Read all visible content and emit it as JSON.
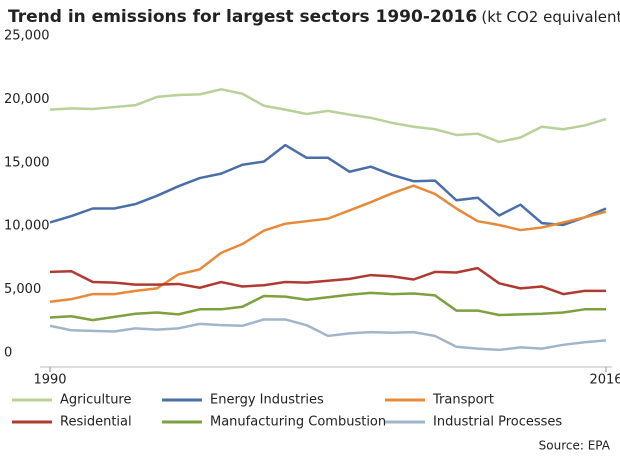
{
  "chart_data": {
    "type": "line",
    "title": "Trend in emissions for largest sectors 1990-2016",
    "subtitle": "(kt CO2 equivalent)",
    "source": "Source: EPA",
    "x": [
      1990,
      1991,
      1992,
      1993,
      1994,
      1995,
      1996,
      1997,
      1998,
      1999,
      2000,
      2001,
      2002,
      2003,
      2004,
      2005,
      2006,
      2007,
      2008,
      2009,
      2010,
      2011,
      2012,
      2013,
      2014,
      2015,
      2016
    ],
    "xlim": [
      1990,
      2016
    ],
    "xticks": [
      1990,
      2016
    ],
    "ylim": [
      0,
      25000
    ],
    "yticks": [
      {
        "value": 0,
        "label": "0"
      },
      {
        "value": 5000,
        "label": "5,000"
      },
      {
        "value": 10000,
        "label": "10,000"
      },
      {
        "value": 15000,
        "label": "15,000"
      },
      {
        "value": 20000,
        "label": "20,000"
      },
      {
        "value": 25000,
        "label": "25,000"
      }
    ],
    "grid": false,
    "legend": "bottom",
    "series": [
      {
        "name": "Agriculture",
        "color": "#b7d198",
        "values": [
          20300,
          20400,
          20350,
          20500,
          20650,
          21300,
          21450,
          21500,
          21900,
          21550,
          20600,
          20300,
          19950,
          20200,
          19900,
          19650,
          19250,
          18950,
          18750,
          18300,
          18400,
          17750,
          18100,
          18950,
          18750,
          19050,
          19550
        ]
      },
      {
        "name": "Energy Industries",
        "color": "#4a6ea8",
        "values": [
          11400,
          11900,
          12500,
          12500,
          12850,
          13500,
          14250,
          14900,
          15250,
          15950,
          16200,
          17500,
          16500,
          16500,
          15400,
          15800,
          15150,
          14650,
          14700,
          13150,
          13350,
          11950,
          12800,
          11350,
          11200,
          11800,
          12500
        ]
      },
      {
        "name": "Transport",
        "color": "#e8893a",
        "values": [
          5150,
          5350,
          5750,
          5750,
          6000,
          6200,
          7300,
          7700,
          9000,
          9700,
          10750,
          11300,
          11500,
          11700,
          12350,
          13000,
          13700,
          14300,
          13650,
          12500,
          11500,
          11200,
          10800,
          11000,
          11400,
          11800,
          12250
        ]
      },
      {
        "name": "Residential",
        "color": "#b03a32",
        "values": [
          7500,
          7550,
          6700,
          6650,
          6500,
          6500,
          6550,
          6250,
          6700,
          6350,
          6450,
          6700,
          6650,
          6800,
          6950,
          7250,
          7150,
          6900,
          7500,
          7450,
          7800,
          6600,
          6200,
          6350,
          5750,
          6000,
          6000
        ]
      },
      {
        "name": "Manufacturing Combustion",
        "color": "#7ea03e",
        "values": [
          3900,
          4000,
          3700,
          3950,
          4200,
          4300,
          4150,
          4550,
          4550,
          4750,
          5600,
          5550,
          5300,
          5500,
          5700,
          5850,
          5750,
          5800,
          5650,
          4450,
          4450,
          4100,
          4150,
          4200,
          4300,
          4550,
          4550
        ]
      },
      {
        "name": "Industrial Processes",
        "color": "#a0b5ca",
        "values": [
          3250,
          2900,
          2850,
          2800,
          3050,
          2950,
          3050,
          3400,
          3300,
          3250,
          3750,
          3750,
          3300,
          2450,
          2650,
          2750,
          2700,
          2750,
          2450,
          1600,
          1450,
          1350,
          1550,
          1450,
          1750,
          1950,
          2100
        ]
      }
    ]
  }
}
